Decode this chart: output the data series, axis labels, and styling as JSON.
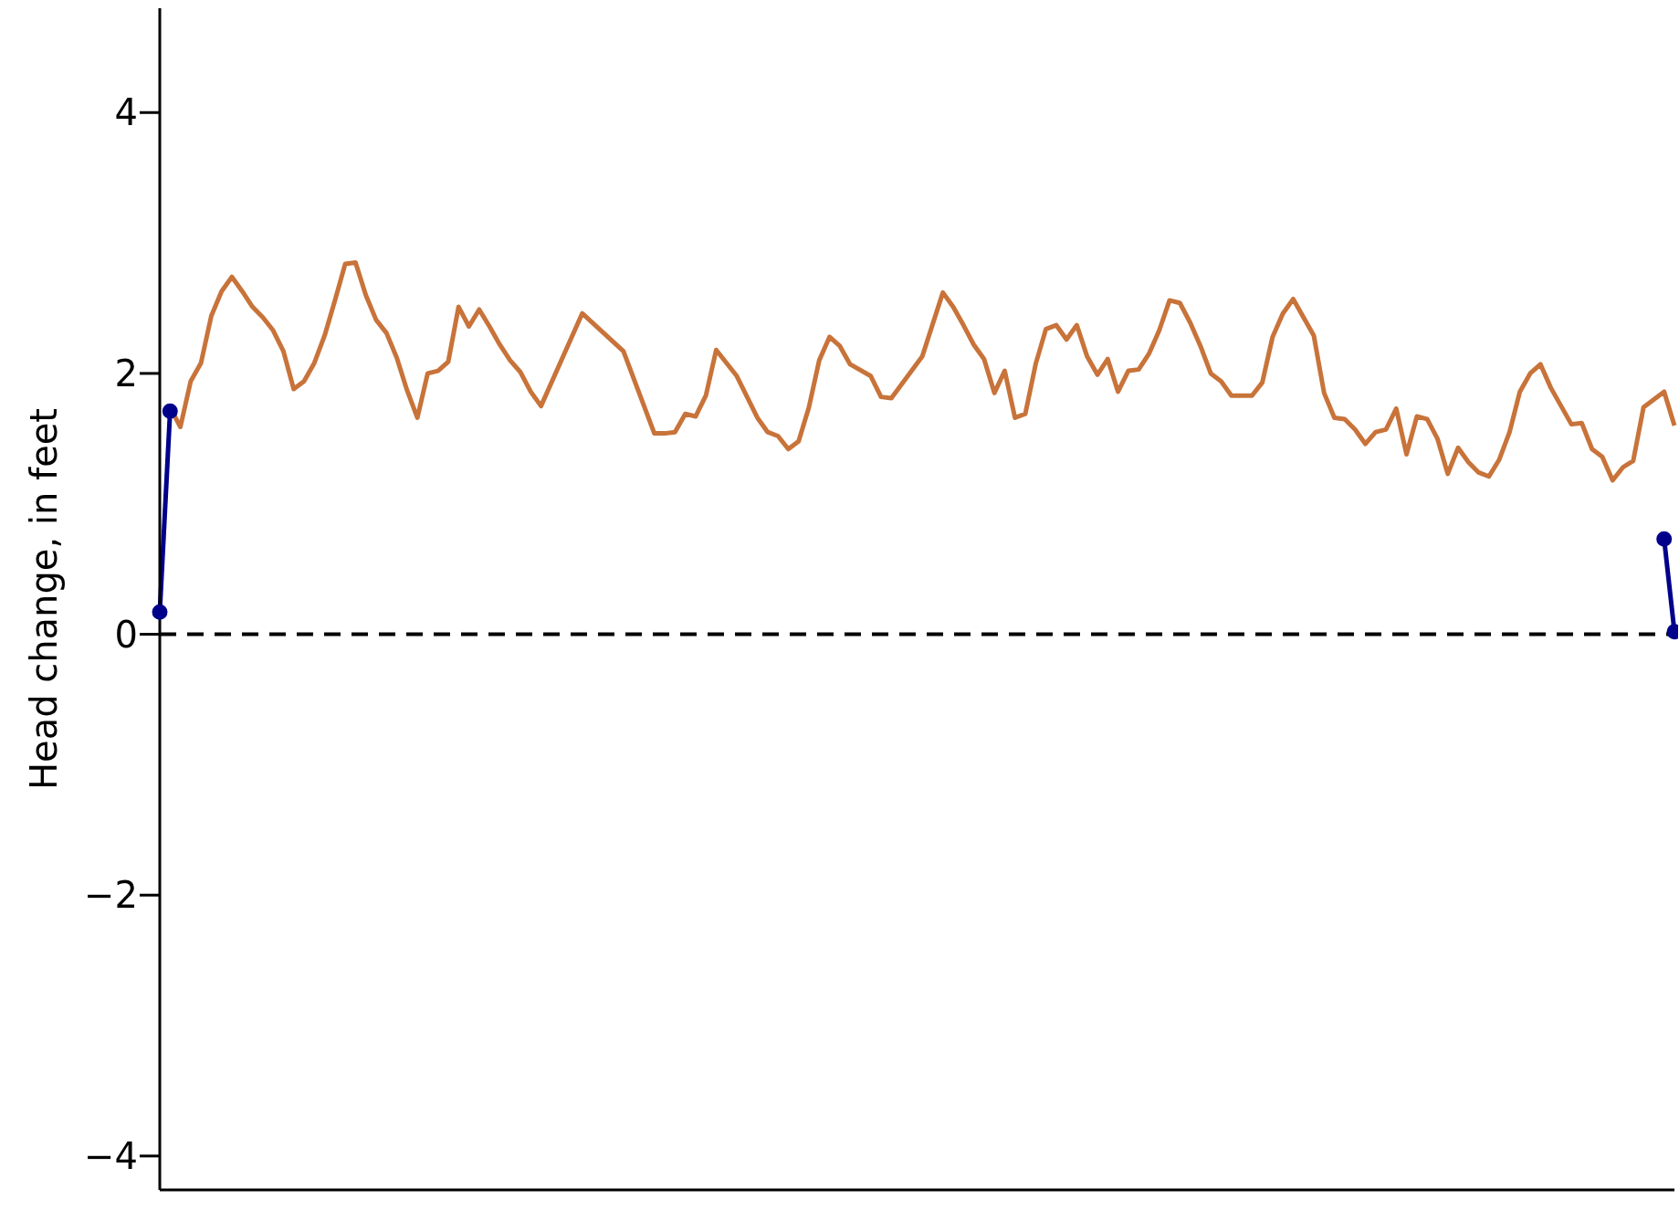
{
  "chart_data": {
    "type": "line",
    "ylabel": "Head change, in feet",
    "categories": [
      null,
      null,
      null,
      null,
      null,
      null,
      null,
      null,
      null,
      null,
      null,
      null,
      null,
      null,
      null,
      null,
      null,
      null,
      null,
      null,
      null,
      null,
      null,
      null,
      null,
      null,
      null,
      null,
      null,
      null,
      null,
      null,
      null,
      null,
      null,
      null,
      null,
      null,
      null,
      null,
      null,
      null,
      null,
      null,
      null,
      null,
      null,
      null,
      null,
      null,
      null,
      null,
      null,
      null,
      null,
      null,
      null,
      null,
      null,
      null,
      null,
      null,
      null,
      null,
      null,
      null,
      null,
      null,
      null,
      null,
      null,
      null,
      null,
      null,
      null,
      null,
      null,
      null,
      null,
      null,
      null,
      null,
      null,
      null,
      null,
      null,
      null,
      null,
      null,
      null,
      null,
      null,
      null,
      null,
      null,
      null,
      null,
      null,
      null,
      null,
      null,
      null,
      null,
      null,
      null,
      null,
      null,
      null,
      null,
      null,
      null,
      null,
      null,
      null,
      null,
      null,
      null,
      null,
      null,
      null,
      null,
      null,
      null,
      null,
      null,
      null,
      null,
      null,
      null,
      null,
      null,
      null,
      null,
      null,
      null,
      null,
      null,
      null,
      null,
      null,
      null,
      null,
      null,
      null,
      null,
      null,
      null,
      null
    ],
    "ylim": [
      -4.26,
      4.8
    ],
    "yticks": [
      {
        "value": -4,
        "label": "−4"
      },
      {
        "value": -2,
        "label": "−2"
      },
      0,
      2,
      4
    ],
    "tick_labels": "y",
    "grid": false,
    "line_style": "solid",
    "series": [
      {
        "color": "#c8733a",
        "marker": "none",
        "values": [
          null,
          1.74,
          1.59,
          1.94,
          2.08,
          2.44,
          2.63,
          2.74,
          2.63,
          2.51,
          2.43,
          2.33,
          2.17,
          1.88,
          1.94,
          2.08,
          2.29,
          2.56,
          2.84,
          2.85,
          2.6,
          2.41,
          2.31,
          2.12,
          1.87,
          1.66,
          2.0,
          2.02,
          2.09,
          2.51,
          2.36,
          2.49,
          2.36,
          2.22,
          2.1,
          2.01,
          1.86,
          1.75,
          null,
          null,
          null,
          2.46,
          null,
          null,
          null,
          2.17,
          null,
          null,
          1.54,
          1.54,
          1.55,
          1.69,
          1.67,
          1.83,
          2.18,
          null,
          1.98,
          null,
          1.66,
          1.55,
          1.52,
          1.42,
          1.48,
          1.74,
          2.1,
          2.28,
          2.21,
          2.07,
          null,
          1.98,
          1.82,
          1.81,
          null,
          null,
          2.13,
          null,
          2.62,
          2.51,
          2.37,
          2.22,
          2.11,
          1.85,
          2.02,
          1.66,
          1.69,
          2.07,
          2.34,
          2.37,
          2.26,
          2.37,
          2.13,
          1.99,
          2.11,
          1.86,
          2.02,
          2.03,
          2.15,
          2.33,
          2.56,
          2.54,
          2.39,
          2.21,
          2.0,
          1.94,
          1.83,
          null,
          1.83,
          1.93,
          2.28,
          2.46,
          2.57,
          2.43,
          2.29,
          1.85,
          1.66,
          1.65,
          1.57,
          1.46,
          1.55,
          1.57,
          1.73,
          1.38,
          1.67,
          1.65,
          1.5,
          1.23,
          1.43,
          1.32,
          1.24,
          1.21,
          1.34,
          1.55,
          1.86,
          2.0,
          2.07,
          1.89,
          1.75,
          1.61,
          1.62,
          1.42,
          1.36,
          1.18,
          1.28,
          1.33,
          1.74,
          null,
          1.86,
          1.6
        ]
      },
      {
        "color": "#00008b",
        "marker": "circle",
        "values": [
          0.17,
          1.71,
          null,
          null,
          null,
          null,
          null,
          null,
          null,
          null,
          null,
          null,
          null,
          null,
          null,
          null,
          null,
          null,
          null,
          null,
          null,
          null,
          null,
          null,
          null,
          null,
          null,
          null,
          null,
          null,
          null,
          null,
          null,
          null,
          null,
          null,
          null,
          null,
          null,
          null,
          null,
          null,
          null,
          null,
          null,
          null,
          null,
          null,
          null,
          null,
          null,
          null,
          null,
          null,
          null,
          null,
          null,
          null,
          null,
          null,
          null,
          null,
          null,
          null,
          null,
          null,
          null,
          null,
          null,
          null,
          null,
          null,
          null,
          null,
          null,
          null,
          null,
          null,
          null,
          null,
          null,
          null,
          null,
          null,
          null,
          null,
          null,
          null,
          null,
          null,
          null,
          null,
          null,
          null,
          null,
          null,
          null,
          null,
          null,
          null,
          null,
          null,
          null,
          null,
          null,
          null,
          null,
          null,
          null,
          null,
          null,
          null,
          null,
          null,
          null,
          null,
          null,
          null,
          null,
          null,
          null,
          null,
          null,
          null,
          null,
          null,
          null,
          null,
          null,
          null,
          null,
          null,
          null,
          null,
          null,
          null,
          null,
          null,
          null,
          null,
          null,
          null,
          null,
          null,
          null,
          null,
          null,
          null
        ]
      },
      {
        "color": "#00008b",
        "marker": "circle",
        "values": [
          null,
          null,
          null,
          null,
          null,
          null,
          null,
          null,
          null,
          null,
          null,
          null,
          null,
          null,
          null,
          null,
          null,
          null,
          null,
          null,
          null,
          null,
          null,
          null,
          null,
          null,
          null,
          null,
          null,
          null,
          null,
          null,
          null,
          null,
          null,
          null,
          null,
          null,
          null,
          null,
          null,
          null,
          null,
          null,
          null,
          null,
          null,
          null,
          null,
          null,
          null,
          null,
          null,
          null,
          null,
          null,
          null,
          null,
          null,
          null,
          null,
          null,
          null,
          null,
          null,
          null,
          null,
          null,
          null,
          null,
          null,
          null,
          null,
          null,
          null,
          null,
          null,
          null,
          null,
          null,
          null,
          null,
          null,
          null,
          null,
          null,
          null,
          null,
          null,
          null,
          null,
          null,
          null,
          null,
          null,
          null,
          null,
          null,
          null,
          null,
          null,
          null,
          null,
          null,
          null,
          null,
          null,
          null,
          null,
          null,
          null,
          null,
          null,
          null,
          null,
          null,
          null,
          null,
          null,
          null,
          null,
          null,
          null,
          null,
          null,
          null,
          null,
          null,
          null,
          null,
          null,
          null,
          null,
          null,
          null,
          null,
          null,
          null,
          null,
          null,
          null,
          null,
          null,
          null,
          null,
          null,
          0.73,
          0.02
        ]
      }
    ],
    "ref_lines": [
      {
        "axis": "y",
        "value": 0,
        "color": "#000000",
        "line_style": "dashed"
      }
    ]
  }
}
